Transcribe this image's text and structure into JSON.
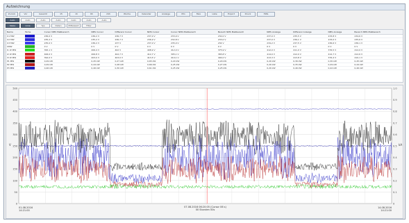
{
  "window": {
    "title": "Aufzeichnung"
  },
  "toolbar": {
    "buttons": [
      "Zurück",
      "Vor",
      "Gesamt",
      "15",
      "1h",
      "6h",
      "24h",
      "Woche",
      "Kalender",
      "Anzeige",
      "Min",
      "Max",
      "Liste",
      "Export",
      "Druck",
      "Hilfe"
    ],
    "row2": [
      "Auto",
      "Auto",
      "Auto",
      "Auto",
      "Auto",
      "Auto",
      "Auto"
    ],
    "row3": [
      "Skala",
      "Linie",
      "Typ",
      "Daten",
      "Mittelwert",
      "Filter"
    ]
  },
  "table": {
    "columns": [
      "Name",
      "Farbe",
      "Cursor NMS Maßbereich",
      "NMS Cursor",
      "Differenz Cursor",
      "NMS Cursor",
      "Cursor NMS Maßbereich",
      "Bereich NMS Maßbereich",
      "NMS Anzeige",
      "Differenz Anzeige",
      "NMS Anzeige",
      "Bereich NMS Maßbereich"
    ],
    "rows": [
      {
        "name": "U1 MW",
        "color": "#1a1acc",
        "cells": [
          "236,0 V",
          "236,2 V",
          "236,7 V",
          "237,0 V",
          "233,9 V",
          "232,0 V",
          "237,0 V",
          "235,5 V",
          "233,8 V",
          "234,6 V"
        ]
      },
      {
        "name": "U2 MW",
        "color": "#2a2add",
        "cells": [
          "235,2 V",
          "235,2 V",
          "236,7 V",
          "236,9 V",
          "232,8 V",
          "233,0 V",
          "237,0 V",
          "236,1 V",
          "233,0 V",
          "235,6 V"
        ]
      },
      {
        "name": "U3 MW",
        "color": "#3b3bee",
        "cells": [
          "235,0 V",
          "236,2 V",
          "237 V",
          "237,0 V",
          "235,0 V",
          "234 V",
          "234,2 V",
          "237,5 V",
          "236,6 V",
          "236,1 V"
        ]
      },
      {
        "name": "UNW",
        "color": "#22b622",
        "cells": [
          "0 V",
          "0 V",
          "0 V",
          "0 V",
          "0 V",
          "0 V",
          "0 V",
          "0 V",
          "0 V",
          "0 V"
        ]
      },
      {
        "name": "I1 W MW",
        "color": "#22dd22",
        "cells": [
          "395,1 V",
          "406,4 V",
          "402 V",
          "408,9 V",
          "412,4 V",
          "375,9 V",
          "412,0 V",
          "411,0 V",
          "376,5 V",
          "412,0 V"
        ]
      },
      {
        "name": "I2 W MW",
        "color": "#cc2222",
        "cells": [
          "406,0 V",
          "406,8 V",
          "402,7 V",
          "412,7 V",
          "395,1 V",
          "365,8 V",
          "414,0 V",
          "412,0 V",
          "412,7 V",
          "412,6 V"
        ]
      },
      {
        "name": "I3 W MW",
        "color": "#e02020",
        "cells": [
          "392,0 V",
          "403,0 V",
          "403,0 V",
          "413,5 V",
          "410,1 V",
          "404,0 V",
          "413,3 V",
          "413,8 V",
          "376,4 V",
          "410,1 V"
        ]
      },
      {
        "name": "P1 MW",
        "color": "#111111",
        "cells": [
          "0,29 kW",
          "0,45 kW",
          "0,27 kW",
          "0,65 kW",
          "0,20 kW",
          "0,29 kW",
          "0,26 kW",
          "0,36 kW",
          "0,30 kW",
          "0,45 kW"
        ]
      },
      {
        "name": "P2 MW",
        "color": "#b01818",
        "cells": [
          "0,29 kW",
          "0,44 kW",
          "0,28 kW",
          "0,66 kW",
          "0,25 kW",
          "0,27 kW",
          "0,26 kW",
          "0,35 kW",
          "0,29 kW",
          "0,44 kW"
        ]
      },
      {
        "name": "P3 MW",
        "color": "#2020bb",
        "cells": [
          "0,46 kW",
          "0,46 kW",
          "0,30 kW",
          "0,61 kW",
          "0,25 kW",
          "0,25 kW",
          "0,26 kW",
          "0,46 kW",
          "0,42 kW",
          "0,46 kW"
        ]
      }
    ]
  },
  "chart_data": {
    "type": "line",
    "x_start_label": "01.08.2016\n14:21:00",
    "x_end_label": "14.08.2016\n14:21:00",
    "center_label_1": "07.08.2016 06:20:05 (Cursor 06 s)",
    "center_label_2": "00 Stunden 00s",
    "ylabel_left": "V",
    "ylabel_right": "kA",
    "ylim_left": [
      0,
      500
    ],
    "yticks_left": [
      "0",
      "50",
      "100",
      "150",
      "200",
      "250",
      "300",
      "350",
      "400",
      "450",
      "500"
    ],
    "ylim_right": [
      0,
      1.0
    ],
    "yticks_right": [
      "0",
      "0.1",
      "0.2",
      "0.3",
      "0.4",
      "0.5",
      "0.6",
      "0.7",
      "0.8",
      "0.9",
      "1.0"
    ],
    "series": [
      {
        "name": "U1 MW",
        "color": "#2a2ab8",
        "level": 410,
        "amp": 4
      },
      {
        "name": "U2 MW",
        "color": "#1818a8",
        "level": 250,
        "amp": 5
      },
      {
        "name": "I1 W MW",
        "color": "#3030c8",
        "level": 200,
        "amp": 90,
        "loadPattern": true
      },
      {
        "name": "I2 W MW",
        "color": "#b83030",
        "level": 150,
        "amp": 60,
        "loadPattern": true
      },
      {
        "name": "P1 MW",
        "color": "#222222",
        "level": 290,
        "amp": 70,
        "loadPattern": true
      },
      {
        "name": "UNW",
        "color": "#28c828",
        "level": 70,
        "amp": 14
      }
    ],
    "cursor_fraction": 0.505
  }
}
